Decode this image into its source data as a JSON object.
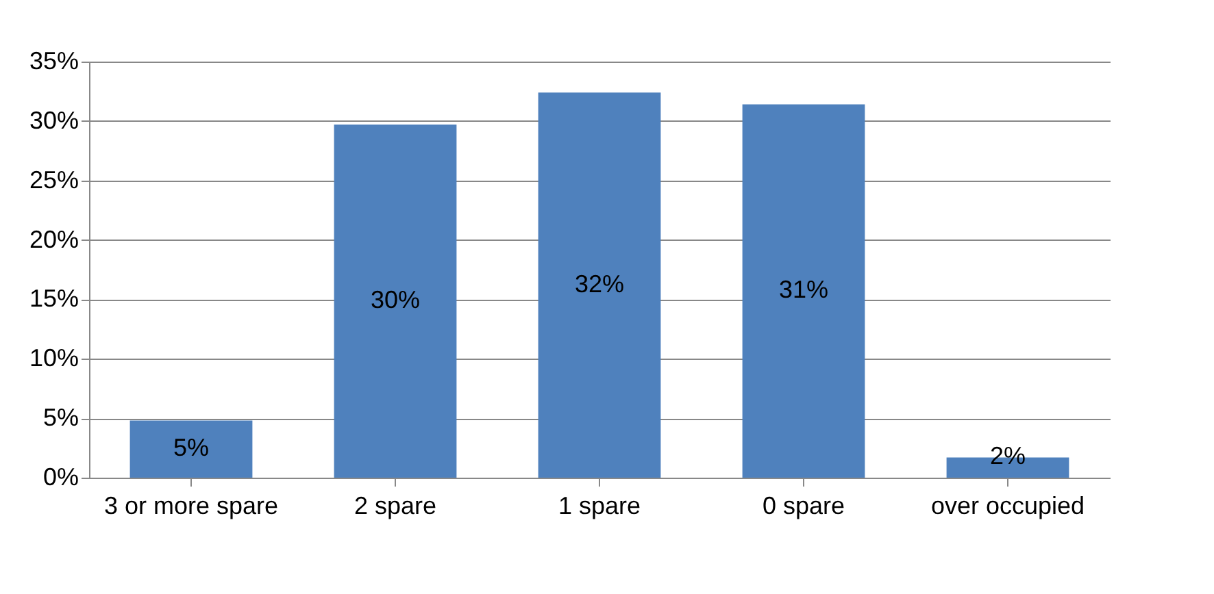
{
  "chart_data": {
    "type": "bar",
    "categories": [
      "3 or more spare",
      "2 spare",
      "1 spare",
      "0 spare",
      "over occupied"
    ],
    "values": [
      4.8,
      29.7,
      32.4,
      31.4,
      1.7
    ],
    "value_labels": [
      "5%",
      "30%",
      "32%",
      "31%",
      "2%"
    ],
    "color": "#4f81bd",
    "ylim": [
      0,
      35
    ],
    "yticks": [
      {
        "value": 0,
        "label": "0%"
      },
      {
        "value": 5,
        "label": "5%"
      },
      {
        "value": 10,
        "label": "10%"
      },
      {
        "value": 15,
        "label": "15%"
      },
      {
        "value": 20,
        "label": "20%"
      },
      {
        "value": 25,
        "label": "25%"
      },
      {
        "value": 30,
        "label": "30%"
      },
      {
        "value": 35,
        "label": "35%"
      }
    ],
    "grid": "y"
  }
}
